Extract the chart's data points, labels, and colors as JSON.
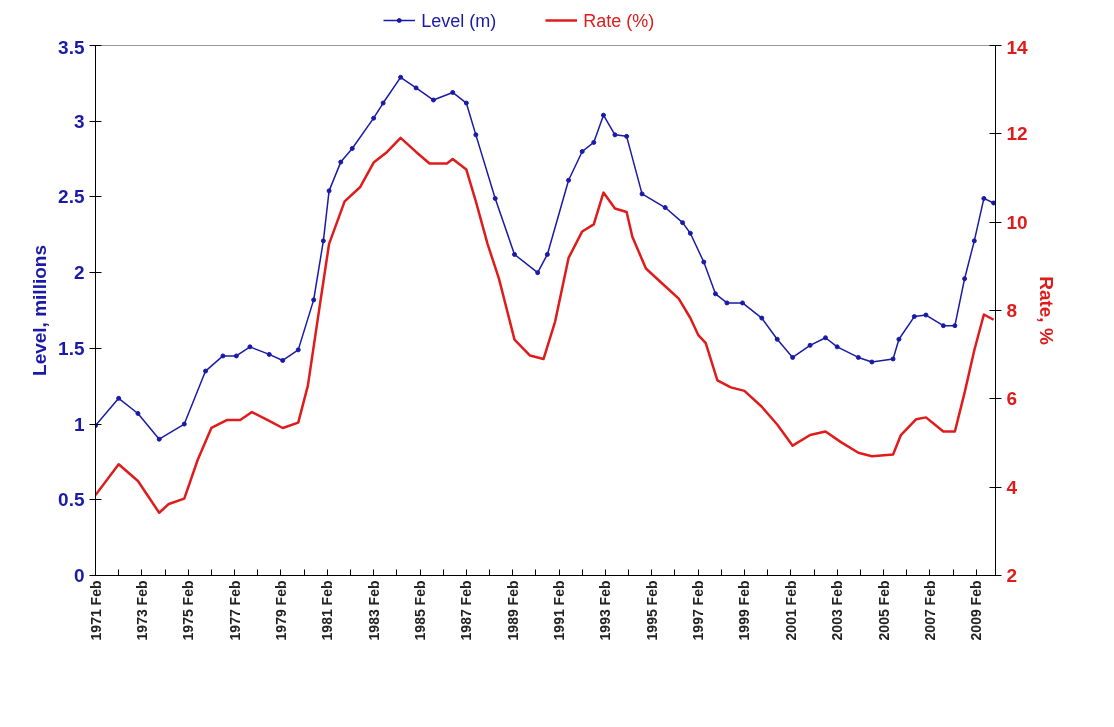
{
  "chart_data": {
    "type": "line",
    "ylabel": "Level, millions",
    "y2label": "Rate, %",
    "legend": "top",
    "grid": false,
    "xlim": [
      "1971-02",
      "2009-12"
    ],
    "xticks": [
      {
        "value": "1971-02",
        "label": "1971 Feb"
      },
      {
        "value": "1972-02",
        "label": null
      },
      {
        "value": "1973-02",
        "label": "1973 Feb"
      },
      {
        "value": "1974-02",
        "label": null
      },
      {
        "value": "1975-02",
        "label": "1975 Feb"
      },
      {
        "value": "1976-02",
        "label": null
      },
      {
        "value": "1977-02",
        "label": "1977 Feb"
      },
      {
        "value": "1978-02",
        "label": null
      },
      {
        "value": "1979-02",
        "label": "1979 Feb"
      },
      {
        "value": "1980-02",
        "label": null
      },
      {
        "value": "1981-02",
        "label": "1981 Feb"
      },
      {
        "value": "1982-02",
        "label": null
      },
      {
        "value": "1983-02",
        "label": "1983 Feb"
      },
      {
        "value": "1984-02",
        "label": null
      },
      {
        "value": "1985-02",
        "label": "1985 Feb"
      },
      {
        "value": "1986-02",
        "label": null
      },
      {
        "value": "1987-02",
        "label": "1987 Feb"
      },
      {
        "value": "1988-02",
        "label": null
      },
      {
        "value": "1989-02",
        "label": "1989 Feb"
      },
      {
        "value": "1990-02",
        "label": null
      },
      {
        "value": "1991-02",
        "label": "1991 Feb"
      },
      {
        "value": "1992-02",
        "label": null
      },
      {
        "value": "1993-02",
        "label": "1993 Feb"
      },
      {
        "value": "1994-02",
        "label": null
      },
      {
        "value": "1995-02",
        "label": "1995 Feb"
      },
      {
        "value": "1996-02",
        "label": null
      },
      {
        "value": "1997-02",
        "label": "1997 Feb"
      },
      {
        "value": "1998-02",
        "label": null
      },
      {
        "value": "1999-02",
        "label": "1999 Feb"
      },
      {
        "value": "2000-02",
        "label": null
      },
      {
        "value": "2001-02",
        "label": "2001 Feb"
      },
      {
        "value": "2002-02",
        "label": null
      },
      {
        "value": "2003-02",
        "label": "2003 Feb"
      },
      {
        "value": "2004-02",
        "label": null
      },
      {
        "value": "2005-02",
        "label": "2005 Feb"
      },
      {
        "value": "2006-02",
        "label": null
      },
      {
        "value": "2007-02",
        "label": "2007 Feb"
      },
      {
        "value": "2008-02",
        "label": null
      },
      {
        "value": "2009-02",
        "label": "2009 Feb"
      }
    ],
    "ylim": [
      0,
      3.5
    ],
    "yticks": [
      0,
      0.5,
      1,
      1.5,
      2,
      2.5,
      3,
      3.5
    ],
    "y2lim": [
      2,
      14
    ],
    "y2ticks": [
      2,
      4,
      6,
      8,
      10,
      12,
      14
    ],
    "series": [
      {
        "name": "Level (m)",
        "color": "#1a1aa8",
        "marker": "circle",
        "line_style": "solid",
        "x": [
          "1971-02",
          "1972-02",
          "1972-12",
          "1973-11",
          "1974-12",
          "1975-11",
          "1976-08",
          "1977-03",
          "1977-10",
          "1978-08",
          "1979-03",
          "1979-11",
          "1980-07",
          "1980-12",
          "1981-03",
          "1981-09",
          "1982-03",
          "1983-02",
          "1983-07",
          "1984-04",
          "1984-12",
          "1985-09",
          "1986-07",
          "1987-02",
          "1987-07",
          "1988-05",
          "1989-03",
          "1990-03",
          "1990-08",
          "1991-07",
          "1992-02",
          "1992-08",
          "1993-01",
          "1993-07",
          "1994-01",
          "1994-09",
          "1995-09",
          "1996-06",
          "1996-10",
          "1997-05",
          "1997-11",
          "1998-05",
          "1999-01",
          "1999-11",
          "2000-07",
          "2001-03",
          "2001-12",
          "2002-08",
          "2003-02",
          "2004-01",
          "2004-08",
          "2005-07",
          "2005-10",
          "2006-06",
          "2006-12",
          "2007-09",
          "2008-03",
          "2008-08",
          "2009-01",
          "2009-06",
          "2009-11"
        ],
        "values": [
          0.99,
          1.17,
          1.07,
          0.9,
          1.0,
          1.35,
          1.45,
          1.45,
          1.51,
          1.46,
          1.42,
          1.49,
          1.82,
          2.21,
          2.54,
          2.73,
          2.82,
          3.02,
          3.12,
          3.29,
          3.22,
          3.14,
          3.19,
          3.12,
          2.91,
          2.49,
          2.12,
          2.0,
          2.12,
          2.61,
          2.8,
          2.86,
          3.04,
          2.91,
          2.9,
          2.52,
          2.43,
          2.33,
          2.26,
          2.07,
          1.86,
          1.8,
          1.8,
          1.7,
          1.56,
          1.44,
          1.52,
          1.57,
          1.51,
          1.44,
          1.41,
          1.43,
          1.56,
          1.71,
          1.72,
          1.65,
          1.65,
          1.96,
          2.21,
          2.49,
          2.46
        ]
      },
      {
        "name": "Rate (%)",
        "color": "#e01b1b",
        "axis": "y2",
        "line_style": "solid",
        "x": [
          "1971-02",
          "1972-02",
          "1972-12",
          "1973-11",
          "1974-04",
          "1974-12",
          "1975-07",
          "1976-02",
          "1976-10",
          "1977-05",
          "1977-11",
          "1978-08",
          "1979-03",
          "1979-11",
          "1980-04",
          "1980-10",
          "1981-03",
          "1981-11",
          "1982-07",
          "1983-02",
          "1983-09",
          "1984-04",
          "1984-12",
          "1985-07",
          "1986-04",
          "1986-07",
          "1987-02",
          "1987-07",
          "1988-01",
          "1988-07",
          "1989-03",
          "1989-11",
          "1990-06",
          "1990-12",
          "1991-07",
          "1992-02",
          "1992-08",
          "1993-01",
          "1993-07",
          "1994-01",
          "1994-04",
          "1994-11",
          "1995-09",
          "1996-04",
          "1996-10",
          "1997-02",
          "1997-06",
          "1997-12",
          "1998-07",
          "1999-02",
          "1999-11",
          "2000-07",
          "2001-03",
          "2001-12",
          "2002-08",
          "2003-04",
          "2004-01",
          "2004-08",
          "2005-07",
          "2005-11",
          "2006-07",
          "2006-12",
          "2007-09",
          "2008-03",
          "2008-08",
          "2009-01",
          "2009-06",
          "2009-11"
        ],
        "values": [
          3.82,
          4.52,
          4.14,
          3.42,
          3.62,
          3.74,
          4.62,
          5.34,
          5.52,
          5.52,
          5.7,
          5.5,
          5.34,
          5.46,
          6.3,
          8.07,
          9.51,
          10.47,
          10.79,
          11.35,
          11.59,
          11.91,
          11.59,
          11.33,
          11.33,
          11.43,
          11.19,
          10.47,
          9.51,
          8.71,
          7.34,
          6.98,
          6.9,
          7.75,
          9.19,
          9.79,
          9.95,
          10.67,
          10.31,
          10.23,
          9.67,
          8.95,
          8.55,
          8.27,
          7.83,
          7.45,
          7.26,
          6.42,
          6.26,
          6.18,
          5.82,
          5.42,
          4.94,
          5.18,
          5.26,
          5.02,
          4.78,
          4.7,
          4.74,
          5.18,
          5.54,
          5.58,
          5.26,
          5.26,
          6.14,
          7.1,
          7.91,
          7.79
        ]
      }
    ]
  }
}
